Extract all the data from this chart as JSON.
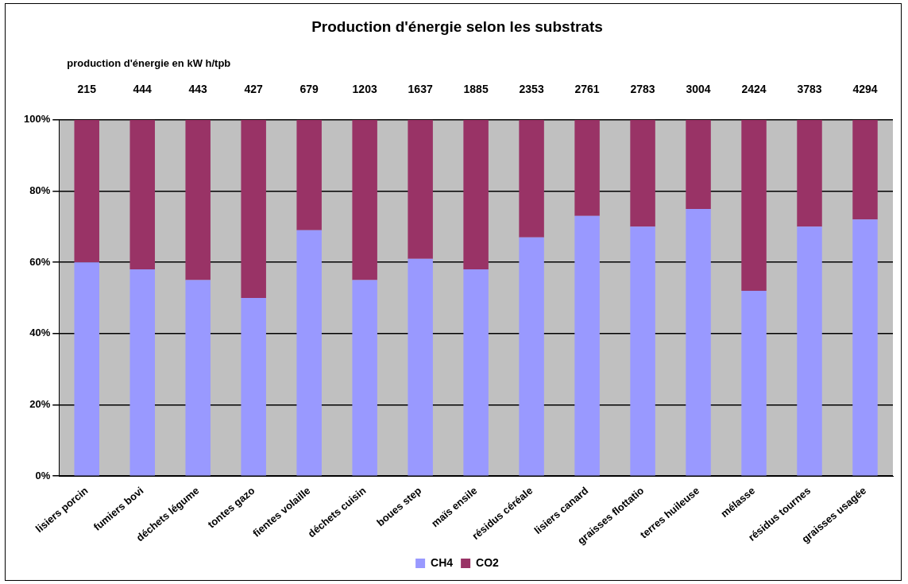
{
  "chart_data": {
    "type": "bar",
    "title": "Production d'énergie selon les substrats",
    "stacked": true,
    "grid": "y",
    "legend": "bottom",
    "ylim": [
      0,
      100
    ],
    "yticks": [
      {
        "value": 0,
        "label": "0%"
      },
      {
        "value": 20,
        "label": "20%"
      },
      {
        "value": 40,
        "label": "40%"
      },
      {
        "value": 60,
        "label": "60%"
      },
      {
        "value": 80,
        "label": "80%"
      },
      {
        "value": 100,
        "label": "100%"
      }
    ],
    "categories": [
      "lisiers porcin",
      "fumiers bovi",
      "déchets légume",
      "tontes gazo",
      "fientes volaille",
      "déchets cuisin",
      "boues step",
      "maïs ensile",
      "résidus céréale",
      "lisiers canard",
      "graisses flottatio",
      "terres huileuse",
      "mélasse",
      "résidus tournes",
      "graisses usagée"
    ],
    "series": [
      {
        "name": "CH4",
        "color": "#9999ff",
        "values": [
          60,
          58,
          55,
          50,
          69,
          55,
          61,
          58,
          67,
          73,
          70,
          75,
          52,
          70,
          72
        ]
      },
      {
        "name": "CO2",
        "color": "#993366",
        "values": [
          40,
          42,
          45,
          50,
          31,
          45,
          39,
          42,
          33,
          27,
          30,
          25,
          48,
          30,
          28
        ]
      }
    ],
    "annotations": [
      "production d'énergie en kW h/tpb",
      "215",
      "444",
      "443",
      "427",
      "679",
      "1203",
      "1637",
      "1885",
      "2353",
      "2761",
      "2783",
      "3004",
      "2424",
      "3783",
      "4294"
    ]
  }
}
